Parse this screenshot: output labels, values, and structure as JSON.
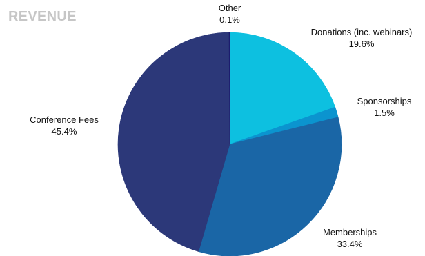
{
  "chart_data": {
    "type": "pie",
    "title": "REVENUE",
    "slices": [
      {
        "label": "Donations (inc. webinars)",
        "value": 19.6,
        "value_text": "19.6%",
        "color": "#0dc0e0"
      },
      {
        "label": "Sponsorships",
        "value": 1.5,
        "value_text": "1.5%",
        "color": "#0b94cf"
      },
      {
        "label": "Memberships",
        "value": 33.4,
        "value_text": "33.4%",
        "color": "#1a66a6"
      },
      {
        "label": "Conference Fees",
        "value": 45.4,
        "value_text": "45.4%",
        "color": "#2c3879"
      },
      {
        "label": "Other",
        "value": 0.1,
        "value_text": "0.1%",
        "color": "#1c1c6e"
      }
    ],
    "start_angle": "12 o'clock",
    "direction": "clockwise"
  }
}
